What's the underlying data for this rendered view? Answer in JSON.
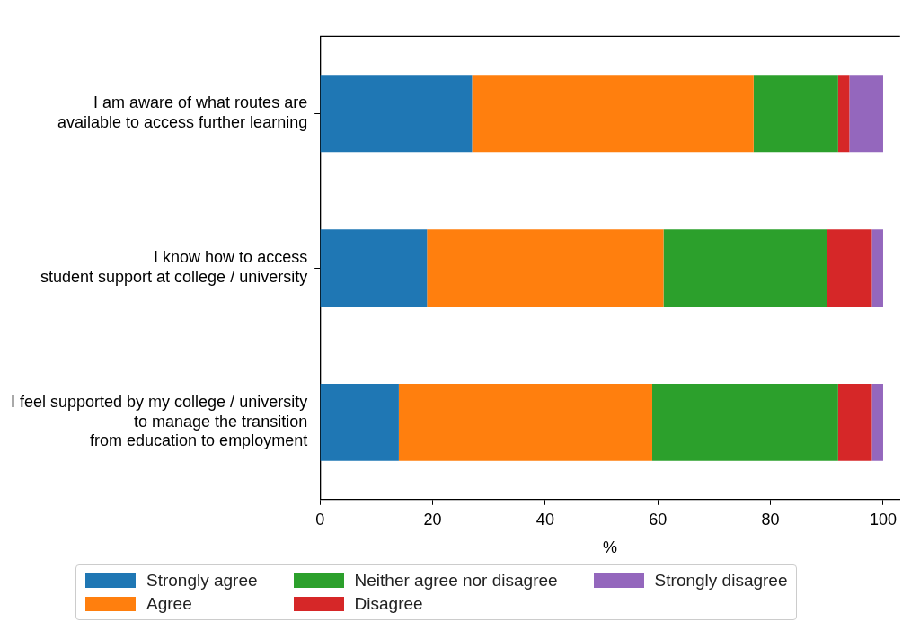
{
  "chart_data": {
    "type": "bar",
    "orientation": "horizontal",
    "stacked": true,
    "xlabel": "%",
    "categories": [
      "I am aware of what routes are\navailable to access further learning",
      "I know how to access\nstudent support at college / university",
      "I feel supported by my college / university\nto manage the transition\nfrom education to employment"
    ],
    "series": [
      {
        "name": "Strongly agree",
        "color": "#1f77b4",
        "values": [
          27,
          19,
          14
        ]
      },
      {
        "name": "Agree",
        "color": "#ff7f0e",
        "values": [
          50,
          42,
          45
        ]
      },
      {
        "name": "Neither agree nor disagree",
        "color": "#2ca02c",
        "values": [
          15,
          29,
          33
        ]
      },
      {
        "name": "Disagree",
        "color": "#d62728",
        "values": [
          2,
          8,
          6
        ]
      },
      {
        "name": "Strongly disagree",
        "color": "#9467bd",
        "values": [
          6,
          2,
          2
        ]
      }
    ],
    "xlim": [
      0,
      103
    ],
    "xticks": [
      0,
      20,
      40,
      60,
      80,
      100
    ],
    "grid": false,
    "legend": "bottom"
  }
}
